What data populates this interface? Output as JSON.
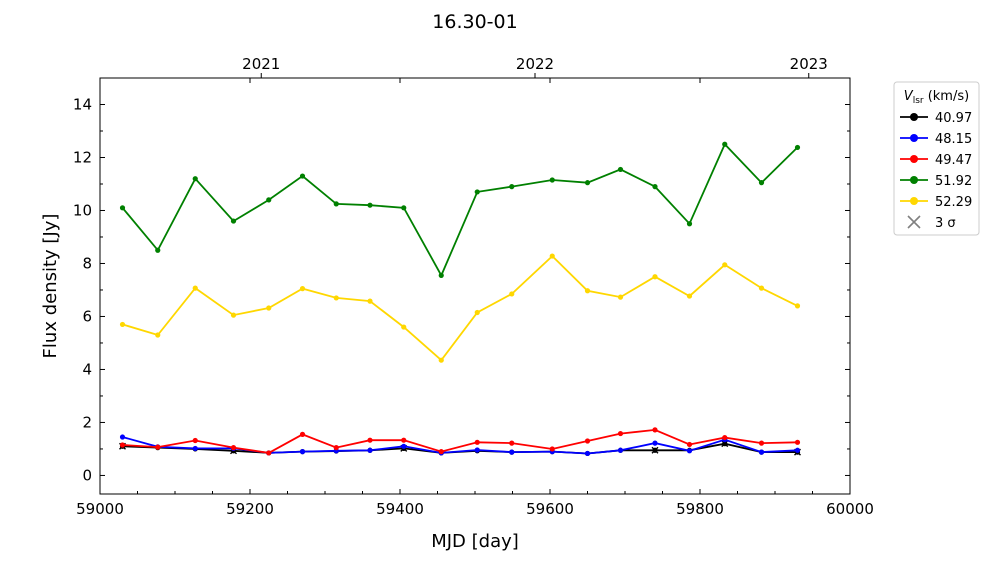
{
  "chart_data": {
    "type": "line",
    "title": "16.30-01",
    "xlabel": "MJD [day]",
    "ylabel": "Flux density [Jy]",
    "xlim": [
      59000,
      60000
    ],
    "ylim": [
      -0.7,
      15
    ],
    "x_ticks": [
      59000,
      59200,
      59400,
      59600,
      59800,
      60000
    ],
    "y_ticks": [
      0,
      2,
      4,
      6,
      8,
      10,
      12,
      14
    ],
    "top_axis": {
      "ticks": [
        {
          "label": "2021",
          "mjd": 59215
        },
        {
          "label": "2022",
          "mjd": 59580
        },
        {
          "label": "2023",
          "mjd": 59945
        }
      ]
    },
    "legend": {
      "title": "V_lsr (km/s)",
      "title_main": "V",
      "title_sub": "lsr",
      "title_unit": " (km/s)",
      "position": "outside-right",
      "sigma_label": "3 σ",
      "sigma_color": "#808080"
    },
    "x": [
      59030,
      59077,
      59127,
      59178,
      59225,
      59270,
      59315,
      59360,
      59405,
      59455,
      59503,
      59549,
      59603,
      59650,
      59694,
      59740,
      59786,
      59833,
      59882,
      59930
    ],
    "series": [
      {
        "name": "40.97",
        "color": "#000000",
        "values": [
          1.1,
          1.05,
          1.0,
          0.93,
          0.85,
          0.9,
          0.92,
          0.95,
          1.02,
          0.85,
          0.93,
          0.88,
          0.9,
          0.83,
          0.95,
          0.95,
          0.95,
          1.2,
          0.88,
          0.88
        ],
        "sigma_markers": [
          true,
          false,
          false,
          true,
          false,
          false,
          false,
          false,
          true,
          false,
          false,
          false,
          false,
          false,
          false,
          true,
          false,
          true,
          false,
          true
        ]
      },
      {
        "name": "48.15",
        "color": "#0000ff",
        "values": [
          1.45,
          1.08,
          1.02,
          1.02,
          0.85,
          0.9,
          0.93,
          0.95,
          1.1,
          0.85,
          0.96,
          0.88,
          0.9,
          0.83,
          0.95,
          1.22,
          0.93,
          1.35,
          0.88,
          0.95
        ],
        "sigma_markers": []
      },
      {
        "name": "49.47",
        "color": "#ff0000",
        "values": [
          1.15,
          1.07,
          1.32,
          1.05,
          0.85,
          1.55,
          1.05,
          1.33,
          1.33,
          0.9,
          1.25,
          1.22,
          1.0,
          1.3,
          1.58,
          1.72,
          1.17,
          1.43,
          1.22,
          1.25
        ],
        "sigma_markers": []
      },
      {
        "name": "51.92",
        "color": "#008000",
        "values": [
          10.1,
          8.5,
          11.2,
          9.6,
          10.4,
          11.3,
          10.25,
          10.2,
          10.1,
          7.55,
          10.7,
          10.9,
          11.15,
          11.05,
          11.55,
          10.9,
          9.5,
          12.5,
          11.05,
          12.38
        ],
        "sigma_markers": []
      },
      {
        "name": "52.29",
        "color": "#ffd700",
        "values": [
          5.7,
          5.3,
          7.07,
          6.05,
          6.32,
          7.05,
          6.7,
          6.58,
          5.6,
          4.35,
          6.15,
          6.85,
          8.28,
          6.97,
          6.73,
          7.5,
          6.77,
          7.95,
          7.07,
          6.4
        ],
        "sigma_markers": []
      }
    ],
    "grid": false
  }
}
